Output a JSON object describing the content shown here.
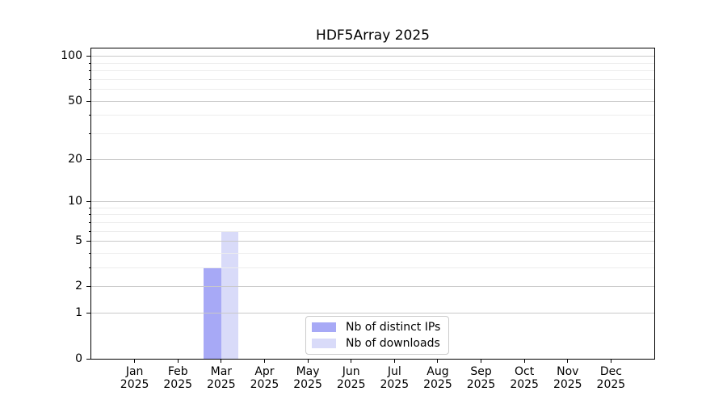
{
  "figure": {
    "background": "#ffffff"
  },
  "chart_data": {
    "type": "bar",
    "title": "HDF5Array 2025",
    "categories": [
      "Jan",
      "Feb",
      "Mar",
      "Apr",
      "May",
      "Jun",
      "Jul",
      "Aug",
      "Sep",
      "Oct",
      "Nov",
      "Dec"
    ],
    "x_year_label": "2025",
    "series": [
      {
        "name": "Nb of distinct IPs",
        "color": "#a7a9f6",
        "values": [
          0,
          0,
          3,
          0,
          0,
          0,
          0,
          0,
          0,
          0,
          0,
          0
        ]
      },
      {
        "name": "Nb of downloads",
        "color": "#d9dbf9",
        "values": [
          0,
          0,
          6,
          0,
          0,
          0,
          0,
          0,
          0,
          0,
          0,
          0
        ]
      }
    ],
    "y_scale": "log1p",
    "y_ticks": [
      0,
      1,
      2,
      5,
      10,
      20,
      50,
      100
    ],
    "y_minor_ticks": [
      3,
      4,
      6,
      7,
      8,
      9,
      30,
      40,
      60,
      70,
      80,
      90
    ],
    "ylim": [
      0,
      113
    ],
    "xlabel": "",
    "ylabel": "",
    "grid": "horizontal",
    "legend_position": "lower-center-inside",
    "colors": {
      "major_grid": "#c9c9c9",
      "minor_grid": "#ededed",
      "axis": "#000000",
      "text": "#000000",
      "legend_border": "#cccccc",
      "legend_bg": "#ffffff"
    }
  }
}
